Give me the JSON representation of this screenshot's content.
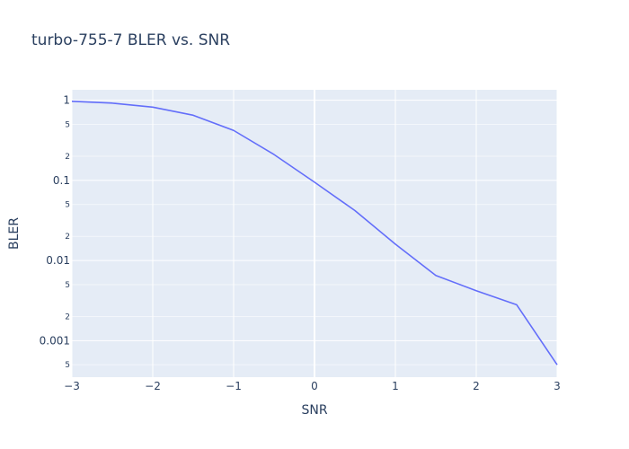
{
  "chart_data": {
    "type": "line",
    "title": "turbo-755-7 BLER vs. SNR",
    "xlabel": "SNR",
    "ylabel": "BLER",
    "x_scale": "linear",
    "y_scale": "log",
    "xlim": [
      -3,
      3
    ],
    "ylim": [
      0.00035,
      1.35
    ],
    "x_ticks": [
      -3,
      -2,
      -1,
      0,
      1,
      2,
      3
    ],
    "x_tick_labels": [
      "−3",
      "−2",
      "−1",
      "0",
      "1",
      "2",
      "3"
    ],
    "y_major_ticks": [
      1,
      0.1,
      0.01,
      0.001
    ],
    "y_major_tick_labels": [
      "1",
      "0.1",
      "0.01",
      "0.001"
    ],
    "y_minor_ticks": [
      0.5,
      0.2,
      0.05,
      0.02,
      0.005,
      0.002,
      0.0005
    ],
    "y_minor_tick_labels": [
      "5",
      "2",
      "5",
      "2",
      "5",
      "2",
      "5"
    ],
    "grid": true,
    "colors": {
      "plot_bg": "#e5ecf6",
      "line": "#636efa",
      "grid": "#ffffff",
      "text": "#2a3f5f"
    },
    "series": [
      {
        "x": [
          -3,
          -2.5,
          -2,
          -1.5,
          -1,
          -0.5,
          0,
          0.5,
          1,
          1.5,
          2,
          2.5,
          3
        ],
        "values": [
          0.97,
          0.92,
          0.82,
          0.65,
          0.42,
          0.21,
          0.095,
          0.042,
          0.016,
          0.0065,
          0.0042,
          0.0028,
          0.0005
        ]
      }
    ]
  }
}
